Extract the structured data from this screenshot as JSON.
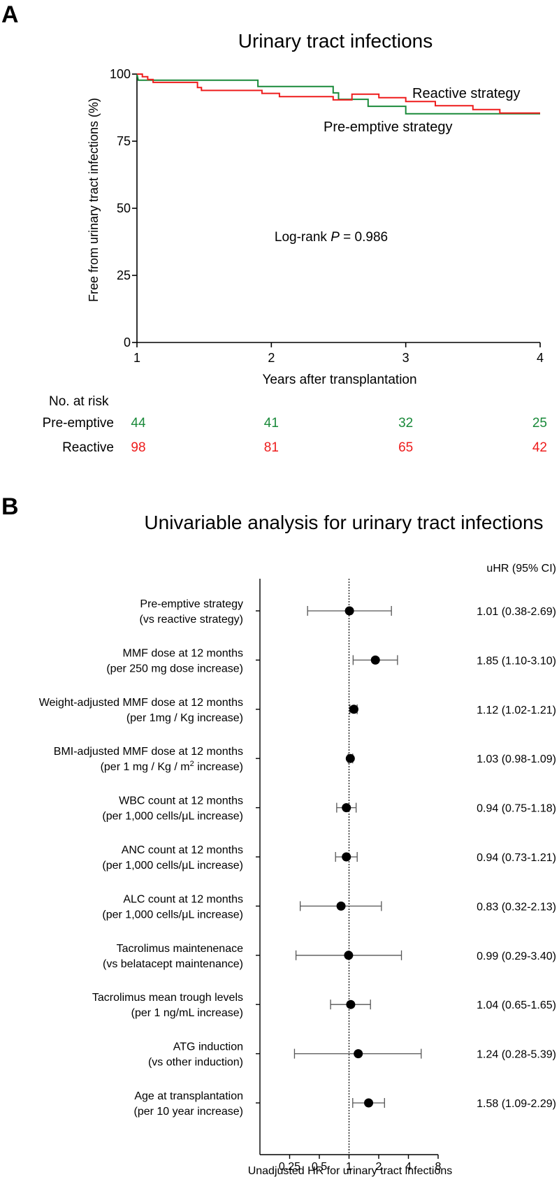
{
  "colors": {
    "preemptive": "#1a8a3a",
    "reactive": "#ee1c1c",
    "axis": "#000000",
    "errorbar": "#555555"
  },
  "chart_data": [
    {
      "panel_label": "A",
      "type": "line",
      "subtype": "kaplan-meier",
      "title": "Urinary tract infections",
      "xlabel": "Years after transplantation",
      "ylabel": "Free from urinary tract infections (%)",
      "xlim": [
        1,
        4
      ],
      "ylim": [
        0,
        100
      ],
      "xticks": [
        "1",
        "2",
        "3",
        "4"
      ],
      "yticks": [
        "0",
        "25",
        "50",
        "75",
        "100"
      ],
      "series": [
        {
          "name": "Pre-emptive strategy",
          "label": "Pre-emptive strategy",
          "color_key": "preemptive",
          "steps": [
            [
              1.0,
              100
            ],
            [
              1.01,
              97.7
            ],
            [
              1.9,
              97.7
            ],
            [
              1.9,
              95.4
            ],
            [
              2.46,
              95.4
            ],
            [
              2.46,
              93.0
            ],
            [
              2.5,
              93.0
            ],
            [
              2.5,
              90.6
            ],
            [
              2.72,
              90.6
            ],
            [
              2.72,
              88.0
            ],
            [
              3.0,
              88.0
            ],
            [
              3.0,
              85.2
            ],
            [
              4.0,
              85.2
            ]
          ]
        },
        {
          "name": "Reactive strategy",
          "label": "Reactive strategy",
          "color_key": "reactive",
          "steps": [
            [
              1.0,
              100
            ],
            [
              1.04,
              100
            ],
            [
              1.04,
              99.0
            ],
            [
              1.08,
              99.0
            ],
            [
              1.08,
              98.0
            ],
            [
              1.12,
              98.0
            ],
            [
              1.12,
              96.9
            ],
            [
              1.45,
              96.9
            ],
            [
              1.45,
              95.0
            ],
            [
              1.48,
              95.0
            ],
            [
              1.48,
              93.9
            ],
            [
              1.93,
              93.9
            ],
            [
              1.93,
              92.8
            ],
            [
              2.06,
              92.8
            ],
            [
              2.06,
              91.6
            ],
            [
              2.46,
              91.6
            ],
            [
              2.46,
              90.4
            ],
            [
              2.6,
              90.4
            ],
            [
              2.6,
              92.5
            ],
            [
              2.8,
              92.5
            ],
            [
              2.8,
              91.2
            ],
            [
              3.0,
              91.2
            ],
            [
              3.0,
              89.8
            ],
            [
              3.22,
              89.8
            ],
            [
              3.22,
              88.2
            ],
            [
              3.5,
              88.2
            ],
            [
              3.5,
              86.8
            ],
            [
              3.7,
              86.8
            ],
            [
              3.7,
              85.5
            ],
            [
              4.0,
              85.5
            ]
          ]
        }
      ],
      "annotation": {
        "prefix": "Log-rank ",
        "italic": "P",
        "suffix": " = 0.986"
      },
      "risk_table": {
        "title": "No. at risk",
        "timepoints": [
          1,
          2,
          3,
          4
        ],
        "rows": [
          {
            "label": "Pre-emptive",
            "color_key": "preemptive",
            "values": [
              "44",
              "41",
              "32",
              "25"
            ]
          },
          {
            "label": "Reactive",
            "color_key": "reactive",
            "values": [
              "98",
              "81",
              "65",
              "42"
            ]
          }
        ]
      }
    },
    {
      "panel_label": "B",
      "type": "scatter",
      "subtype": "forest",
      "title": "Univariable analysis for urinary tract infections",
      "xlabel": "Unadjusted HR for urinary tract infections",
      "xscale": "log2",
      "xlim": [
        0.125,
        8
      ],
      "xticks": [
        "0.25",
        "0.5",
        "1",
        "2",
        "4",
        "8"
      ],
      "xtick_values": [
        0.25,
        0.5,
        1,
        2,
        4,
        8
      ],
      "reference_line": 1,
      "hr_header": "uHR (95% CI)",
      "rows": [
        {
          "line1": "Pre-emptive strategy",
          "line2": "(vs reactive strategy)",
          "hr": 1.01,
          "lo": 0.38,
          "hi": 2.69,
          "text": "1.01 (0.38-2.69)"
        },
        {
          "line1": "MMF dose at 12 months",
          "line2": "(per 250 mg dose increase)",
          "hr": 1.85,
          "lo": 1.1,
          "hi": 3.1,
          "text": "1.85 (1.10-3.10)"
        },
        {
          "line1": "Weight-adjusted MMF dose at 12 months",
          "line2": "(per 1mg / Kg increase)",
          "hr": 1.12,
          "lo": 1.02,
          "hi": 1.21,
          "text": "1.12 (1.02-1.21)"
        },
        {
          "line1": "BMI-adjusted MMF dose at 12 months",
          "line2": "(per 1 mg / Kg / m",
          "line2_sup": "2",
          "line2_tail": " increase)",
          "hr": 1.03,
          "lo": 0.98,
          "hi": 1.09,
          "text": "1.03 (0.98-1.09)"
        },
        {
          "line1": "WBC count at 12 months",
          "line2": "(per 1,000 cells/μL increase)",
          "hr": 0.94,
          "lo": 0.75,
          "hi": 1.18,
          "text": "0.94 (0.75-1.18)"
        },
        {
          "line1": "ANC count at 12 months",
          "line2": "(per 1,000 cells/μL increase)",
          "hr": 0.94,
          "lo": 0.73,
          "hi": 1.21,
          "text": "0.94 (0.73-1.21)"
        },
        {
          "line1": "ALC count at 12 months",
          "line2": "(per 1,000 cells/μL increase)",
          "hr": 0.83,
          "lo": 0.32,
          "hi": 2.13,
          "text": "0.83 (0.32-2.13)"
        },
        {
          "line1": "Tacrolimus maintenenace",
          "line2": "(vs belatacept maintenance)",
          "hr": 0.99,
          "lo": 0.29,
          "hi": 3.4,
          "text": "0.99 (0.29-3.40)"
        },
        {
          "line1": "Tacrolimus mean trough levels",
          "line2": "(per 1 ng/mL increase)",
          "hr": 1.04,
          "lo": 0.65,
          "hi": 1.65,
          "text": "1.04 (0.65-1.65)"
        },
        {
          "line1": "ATG induction",
          "line2": "(vs other induction)",
          "hr": 1.24,
          "lo": 0.28,
          "hi": 5.39,
          "text": "1.24 (0.28-5.39)"
        },
        {
          "line1": "Age at transplantation",
          "line2": "(per 10 year increase)",
          "hr": 1.58,
          "lo": 1.09,
          "hi": 2.29,
          "text": "1.58 (1.09-2.29)"
        }
      ]
    }
  ]
}
